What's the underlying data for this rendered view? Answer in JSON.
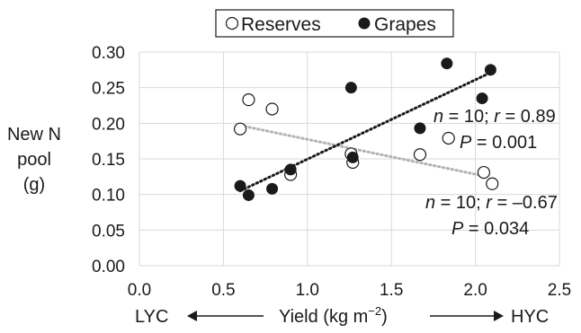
{
  "chart_data": {
    "type": "scatter",
    "xlabel": "Yield (kg m",
    "xlabel_sup": "−2",
    "xlabel_close": ")",
    "ylabel_lines": [
      "New N",
      "pool",
      "(g)"
    ],
    "xlim": [
      0,
      2.5
    ],
    "ylim": [
      0,
      0.3
    ],
    "x_ticks": [
      "0.0",
      "0.5",
      "1.0",
      "1.5",
      "2.0",
      "2.5"
    ],
    "y_ticks": [
      "0.00",
      "0.05",
      "0.10",
      "0.15",
      "0.20",
      "0.25",
      "0.30"
    ],
    "grid": true,
    "legend_position": "top-center",
    "axis_left_label": "LYC",
    "axis_right_label": "HYC",
    "series": [
      {
        "name": "Reserves",
        "marker": "open-circle",
        "trend_color": "#b3b3b3",
        "trend": [
          [
            0.6,
            0.197
          ],
          [
            2.05,
            0.126
          ]
        ],
        "points": [
          [
            0.6,
            0.192
          ],
          [
            0.65,
            0.233
          ],
          [
            0.79,
            0.22
          ],
          [
            0.9,
            0.128
          ],
          [
            1.26,
            0.157
          ],
          [
            1.27,
            0.145
          ],
          [
            1.67,
            0.156
          ],
          [
            1.84,
            0.179
          ],
          [
            2.05,
            0.131
          ],
          [
            2.1,
            0.115
          ]
        ],
        "stats": {
          "n": "10",
          "r": "–0.67",
          "P": "0.034"
        }
      },
      {
        "name": "Grapes",
        "marker": "filled-circle",
        "trend_color": "#1a1a1a",
        "trend": [
          [
            0.6,
            0.105
          ],
          [
            2.08,
            0.27
          ]
        ],
        "points": [
          [
            0.6,
            0.112
          ],
          [
            0.65,
            0.099
          ],
          [
            0.79,
            0.108
          ],
          [
            0.9,
            0.135
          ],
          [
            1.26,
            0.25
          ],
          [
            1.27,
            0.152
          ],
          [
            1.67,
            0.193
          ],
          [
            1.83,
            0.284
          ],
          [
            2.04,
            0.235
          ],
          [
            2.09,
            0.275
          ]
        ],
        "stats": {
          "n": "10",
          "r": "0.89",
          "P": "0.001"
        }
      }
    ]
  }
}
